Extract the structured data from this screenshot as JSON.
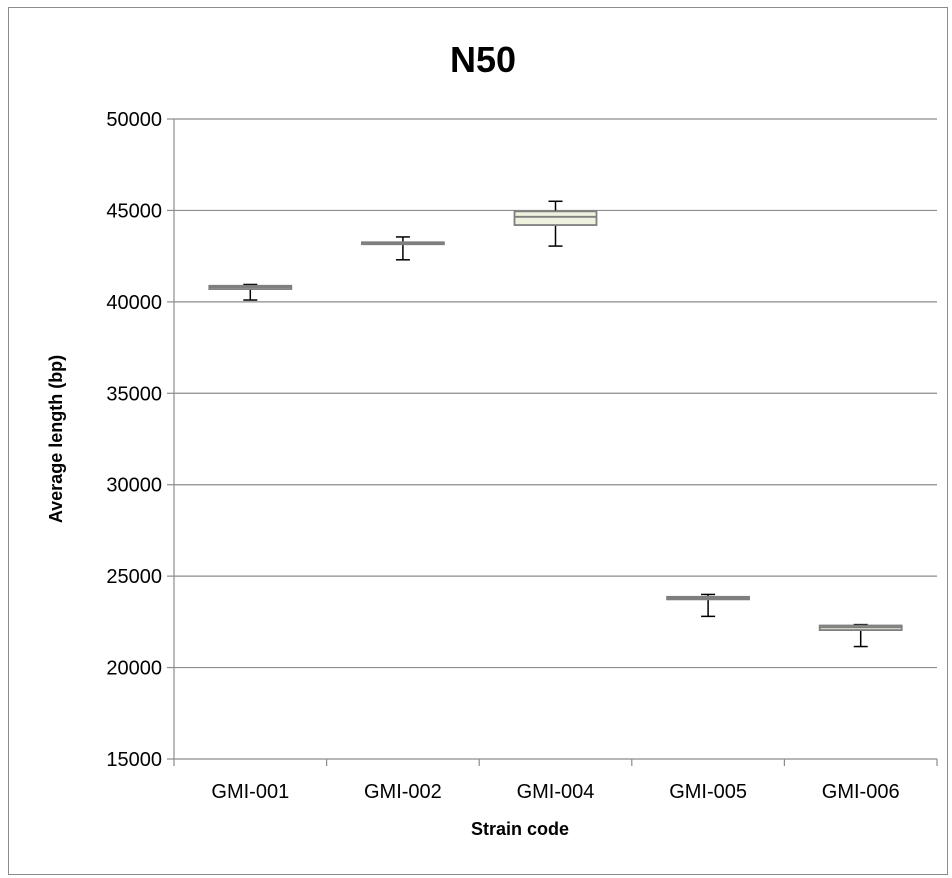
{
  "chart_data": {
    "type": "box",
    "title": "N50",
    "xlabel": "Strain code",
    "ylabel": "Average length (bp)",
    "ylim": [
      15000,
      50000
    ],
    "yticks": [
      15000,
      20000,
      25000,
      30000,
      35000,
      40000,
      45000,
      50000
    ],
    "grid": true,
    "categories": [
      "GMI-001",
      "GMI-002",
      "GMI-004",
      "GMI-005",
      "GMI-006"
    ],
    "boxes": [
      {
        "category": "GMI-001",
        "min": 40100,
        "q1": 40700,
        "median": 40800,
        "q3": 40880,
        "max": 40950
      },
      {
        "category": "GMI-002",
        "min": 42300,
        "q1": 43180,
        "median": 43220,
        "q3": 43260,
        "max": 43550
      },
      {
        "category": "GMI-004",
        "min": 43050,
        "q1": 44200,
        "median": 44650,
        "q3": 44950,
        "max": 45500
      },
      {
        "category": "GMI-005",
        "min": 22800,
        "q1": 23730,
        "median": 23800,
        "q3": 23870,
        "max": 24000
      },
      {
        "category": "GMI-006",
        "min": 21150,
        "q1": 22050,
        "median": 22200,
        "q3": 22300,
        "max": 22350
      }
    ],
    "colors": {
      "box_fill": "#eef1dd",
      "box_stroke": "#7f7f7f",
      "whisker": "#000000",
      "grid": "#8c8c8c",
      "axis": "#8c8c8c"
    }
  }
}
